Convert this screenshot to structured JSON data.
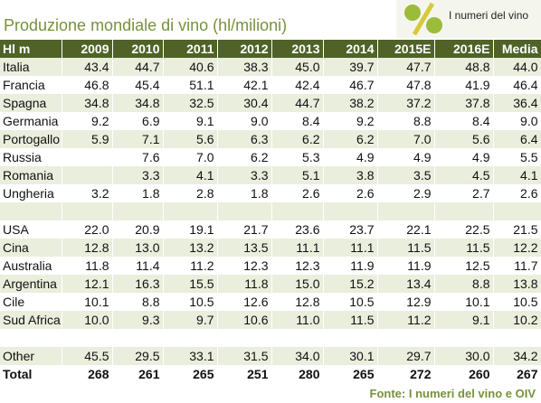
{
  "header": {
    "title": "Produzione mondiale di vino (hl/milioni)",
    "logo_text": "I numeri del vino"
  },
  "table": {
    "columns": [
      "Hl m",
      "2009",
      "2010",
      "2011",
      "2012",
      "2013",
      "2014",
      "2015E",
      "2016E",
      "Media"
    ],
    "sections": [
      {
        "rows": [
          {
            "label": "Italia",
            "values": [
              "43.4",
              "44.7",
              "40.6",
              "38.3",
              "45.0",
              "39.7",
              "47.7",
              "48.8",
              "44.0"
            ]
          },
          {
            "label": "Francia",
            "values": [
              "46.8",
              "45.4",
              "51.1",
              "42.1",
              "42.4",
              "46.7",
              "47.8",
              "41.9",
              "46.4"
            ]
          },
          {
            "label": "Spagna",
            "values": [
              "34.8",
              "34.8",
              "32.5",
              "30.4",
              "44.7",
              "38.2",
              "37.2",
              "37.8",
              "36.4"
            ]
          },
          {
            "label": "Germania",
            "values": [
              "9.2",
              "6.9",
              "9.1",
              "9.0",
              "8.4",
              "9.2",
              "8.8",
              "8.4",
              "9.0"
            ]
          },
          {
            "label": "Portogallo",
            "values": [
              "5.9",
              "7.1",
              "5.6",
              "6.3",
              "6.2",
              "6.2",
              "7.0",
              "5.6",
              "6.4"
            ]
          },
          {
            "label": "Russia",
            "values": [
              null,
              "7.6",
              "7.0",
              "6.2",
              "5.3",
              "4.9",
              "4.9",
              "4.9",
              "5.5"
            ]
          },
          {
            "label": "Romania",
            "values": [
              null,
              "3.3",
              "4.1",
              "3.3",
              "5.1",
              "3.8",
              "3.5",
              "4.5",
              "4.1"
            ]
          },
          {
            "label": "Ungheria",
            "values": [
              "3.2",
              "1.8",
              "2.8",
              "1.8",
              "2.6",
              "2.6",
              "2.9",
              "2.7",
              "2.6"
            ]
          }
        ]
      },
      {
        "rows": [
          {
            "label": "USA",
            "values": [
              "22.0",
              "20.9",
              "19.1",
              "21.7",
              "23.6",
              "23.7",
              "22.1",
              "22.5",
              "21.5"
            ]
          },
          {
            "label": "Cina",
            "values": [
              "12.8",
              "13.0",
              "13.2",
              "13.5",
              "11.1",
              "11.1",
              "11.5",
              "11.5",
              "12.2"
            ]
          },
          {
            "label": "Australia",
            "values": [
              "11.8",
              "11.4",
              "11.2",
              "12.3",
              "12.3",
              "11.9",
              "11.9",
              "12.5",
              "11.7"
            ]
          },
          {
            "label": "Argentina",
            "values": [
              "12.1",
              "16.3",
              "15.5",
              "11.8",
              "15.0",
              "15.2",
              "13.4",
              "8.8",
              "13.8"
            ]
          },
          {
            "label": "Cile",
            "values": [
              "10.1",
              "8.8",
              "10.5",
              "12.6",
              "12.8",
              "10.5",
              "12.9",
              "10.1",
              "10.5"
            ]
          },
          {
            "label": "Sud Africa",
            "values": [
              "10.0",
              "9.3",
              "9.7",
              "10.6",
              "11.0",
              "11.5",
              "11.2",
              "9.1",
              "10.2"
            ]
          }
        ]
      },
      {
        "rows": [
          {
            "label": "Other",
            "values": [
              "45.5",
              "29.5",
              "33.1",
              "31.5",
              "34.0",
              "30.1",
              "29.7",
              "30.0",
              "34.2"
            ]
          }
        ]
      }
    ],
    "total": {
      "label": "Total",
      "values": [
        "268",
        "261",
        "265",
        "251",
        "280",
        "265",
        "272",
        "260",
        "267"
      ]
    }
  },
  "source": "Fonte: I numeri del vino e OIV"
}
